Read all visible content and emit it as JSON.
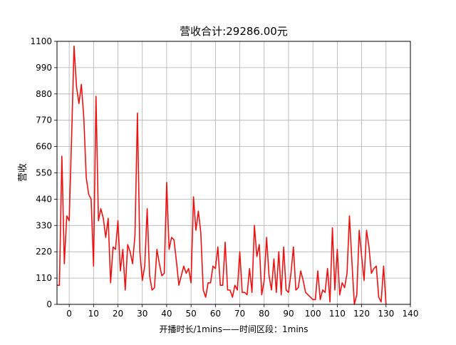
{
  "chart_data": {
    "type": "line",
    "title": "营收合计:29286.00元",
    "xlabel": "开播时长/1mins——时间区段：1mins",
    "ylabel": "营收",
    "xlim": [
      -5,
      140
    ],
    "ylim": [
      0,
      1100
    ],
    "x_ticks": [
      0,
      10,
      20,
      30,
      40,
      50,
      60,
      70,
      80,
      90,
      100,
      110,
      120,
      130,
      140
    ],
    "y_ticks": [
      0,
      110,
      220,
      330,
      440,
      550,
      660,
      770,
      880,
      990,
      1100
    ],
    "grid": true,
    "series": [
      {
        "color": "#ee1111",
        "x": [
          -5,
          -4,
          -3,
          -2,
          -1,
          0,
          1,
          2,
          3,
          4,
          5,
          6,
          7,
          8,
          9,
          10,
          11,
          12,
          13,
          14,
          15,
          16,
          17,
          18,
          19,
          20,
          21,
          22,
          23,
          24,
          25,
          26,
          27,
          28,
          29,
          30,
          31,
          32,
          33,
          34,
          35,
          36,
          37,
          38,
          39,
          40,
          41,
          42,
          43,
          44,
          45,
          46,
          47,
          48,
          49,
          50,
          51,
          52,
          53,
          54,
          55,
          56,
          57,
          58,
          59,
          60,
          61,
          62,
          63,
          64,
          65,
          66,
          67,
          68,
          69,
          70,
          71,
          72,
          73,
          74,
          75,
          76,
          77,
          78,
          79,
          80,
          81,
          82,
          83,
          84,
          85,
          86,
          87,
          88,
          89,
          90,
          91,
          92,
          93,
          94,
          95,
          96,
          97,
          98,
          99,
          100,
          101,
          102,
          103,
          104,
          105,
          106,
          107,
          108,
          109,
          110,
          111,
          112,
          113,
          114,
          115,
          116,
          117,
          118,
          119,
          120,
          121,
          122,
          123,
          124,
          125,
          126,
          127,
          128,
          129,
          130
        ],
        "values": [
          80,
          80,
          620,
          170,
          370,
          350,
          700,
          1080,
          910,
          840,
          920,
          780,
          530,
          460,
          440,
          160,
          870,
          350,
          400,
          360,
          280,
          360,
          90,
          240,
          230,
          350,
          140,
          230,
          60,
          250,
          220,
          170,
          290,
          800,
          220,
          100,
          160,
          400,
          120,
          60,
          70,
          230,
          170,
          120,
          130,
          510,
          230,
          280,
          270,
          180,
          80,
          120,
          160,
          130,
          150,
          90,
          450,
          310,
          390,
          300,
          60,
          30,
          90,
          90,
          160,
          150,
          240,
          80,
          80,
          260,
          60,
          60,
          30,
          80,
          60,
          220,
          50,
          50,
          40,
          150,
          50,
          330,
          200,
          250,
          40,
          100,
          280,
          120,
          60,
          190,
          50,
          220,
          40,
          240,
          60,
          50,
          130,
          240,
          60,
          70,
          140,
          100,
          50,
          40,
          30,
          20,
          20,
          140,
          20,
          60,
          50,
          150,
          10,
          320,
          60,
          230,
          40,
          90,
          70,
          130,
          370,
          180,
          0,
          40,
          310,
          200,
          100,
          310,
          240,
          130,
          150,
          160,
          30,
          10,
          160,
          0
        ]
      }
    ]
  }
}
